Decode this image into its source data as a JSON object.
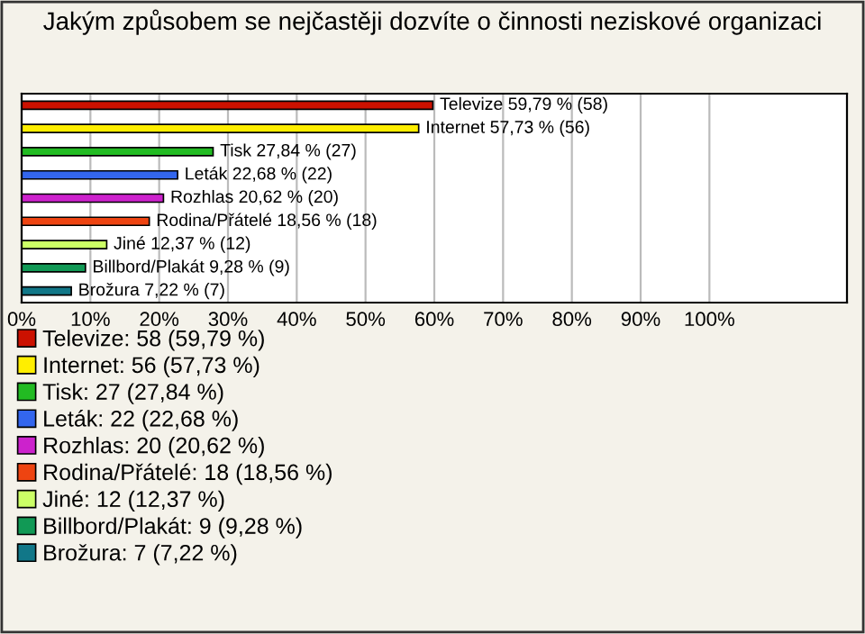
{
  "chart_data": {
    "type": "bar",
    "orientation": "horizontal",
    "title": "Jakým způsobem se nejčastěji dozvíte o činnosti neziskové organizaci",
    "categories": [
      null,
      null,
      null,
      null,
      null,
      null,
      null,
      null,
      null
    ],
    "series": [
      {
        "name": "Televize: 58 (59,79 %)",
        "color": "#cc1100",
        "values": [
          59.79,
          null,
          null,
          null,
          null,
          null,
          null,
          null,
          null
        ],
        "value_labels": [
          "Televize 59,79 % (58)",
          null,
          null,
          null,
          null,
          null,
          null,
          null,
          null
        ]
      },
      {
        "name": "Internet: 56 (57,73 %)",
        "color": "#ffee00",
        "values": [
          null,
          57.73,
          null,
          null,
          null,
          null,
          null,
          null,
          null
        ],
        "value_labels": [
          null,
          "Internet 57,73 % (56)",
          null,
          null,
          null,
          null,
          null,
          null,
          null
        ]
      },
      {
        "name": "Tisk: 27 (27,84 %)",
        "color": "#22bb22",
        "values": [
          null,
          null,
          27.84,
          null,
          null,
          null,
          null,
          null,
          null
        ],
        "value_labels": [
          null,
          null,
          "Tisk 27,84 % (27)",
          null,
          null,
          null,
          null,
          null,
          null
        ]
      },
      {
        "name": "Leták: 22 (22,68 %)",
        "color": "#3366ee",
        "values": [
          null,
          null,
          null,
          22.68,
          null,
          null,
          null,
          null,
          null
        ],
        "value_labels": [
          null,
          null,
          null,
          "Leták 22,68 % (22)",
          null,
          null,
          null,
          null,
          null
        ]
      },
      {
        "name": "Rozhlas: 20 (20,62 %)",
        "color": "#cc22cc",
        "values": [
          null,
          null,
          null,
          null,
          20.62,
          null,
          null,
          null,
          null
        ],
        "value_labels": [
          null,
          null,
          null,
          null,
          "Rozhlas 20,62 % (20)",
          null,
          null,
          null,
          null
        ]
      },
      {
        "name": "Rodina/Přátelé: 18 (18,56 %)",
        "color": "#ee4411",
        "values": [
          null,
          null,
          null,
          null,
          null,
          18.56,
          null,
          null,
          null
        ],
        "value_labels": [
          null,
          null,
          null,
          null,
          null,
          "Rodina/Přátelé 18,56 % (18)",
          null,
          null,
          null
        ]
      },
      {
        "name": "Jiné: 12 (12,37 %)",
        "color": "#ccff66",
        "values": [
          null,
          null,
          null,
          null,
          null,
          null,
          12.37,
          null,
          null
        ],
        "value_labels": [
          null,
          null,
          null,
          null,
          null,
          null,
          "Jiné 12,37 % (12)",
          null,
          null
        ]
      },
      {
        "name": "Billbord/Plakát: 9 (9,28 %)",
        "color": "#119955",
        "values": [
          null,
          null,
          null,
          null,
          null,
          null,
          null,
          9.28,
          null
        ],
        "value_labels": [
          null,
          null,
          null,
          null,
          null,
          null,
          null,
          "Billbord/Plakát 9,28 % (9)",
          null
        ]
      },
      {
        "name": "Brožura: 7 (7,22 %)",
        "color": "#117788",
        "values": [
          null,
          null,
          null,
          null,
          null,
          null,
          null,
          null,
          7.22
        ],
        "value_labels": [
          null,
          null,
          null,
          null,
          null,
          null,
          null,
          null,
          "Brožura 7,22 % (7)"
        ]
      }
    ],
    "xlim": [
      0,
      120
    ],
    "xticks": [
      {
        "value": 0,
        "label": "0%"
      },
      {
        "value": 10,
        "label": "10%"
      },
      {
        "value": 20,
        "label": "20%"
      },
      {
        "value": 30,
        "label": "30%"
      },
      {
        "value": 40,
        "label": "40%"
      },
      {
        "value": 50,
        "label": "50%"
      },
      {
        "value": 60,
        "label": "60%"
      },
      {
        "value": 70,
        "label": "70%"
      },
      {
        "value": 80,
        "label": "80%"
      },
      {
        "value": 90,
        "label": "90%"
      },
      {
        "value": 100,
        "label": "100%"
      }
    ],
    "tick_labels": "x",
    "grid": "x",
    "legend": "bottom"
  }
}
